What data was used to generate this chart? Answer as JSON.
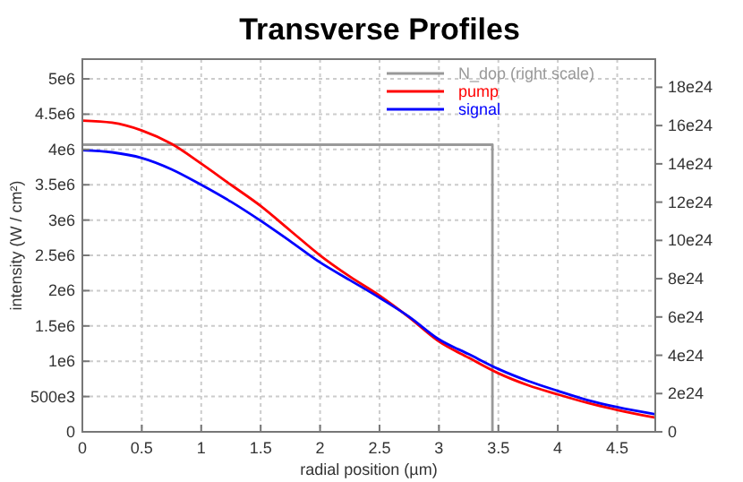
{
  "chart_data": {
    "type": "line",
    "title": "Transverse Profiles",
    "xlabel": "radial position (µm)",
    "ylabel": "intensity (W / cm²)",
    "xlim": [
      0,
      4.82
    ],
    "xticks": [
      0,
      0.5,
      1,
      1.5,
      2,
      2.5,
      3,
      3.5,
      4,
      4.5
    ],
    "ylim": [
      0,
      5280000
    ],
    "yticks": [
      0,
      {
        "value": 500000,
        "label": "500e3"
      },
      {
        "value": 1000000,
        "label": "1e6"
      },
      {
        "value": 1500000,
        "label": "1.5e6"
      },
      {
        "value": 2000000,
        "label": "2e6"
      },
      {
        "value": 2500000,
        "label": "2.5e6"
      },
      {
        "value": 3000000,
        "label": "3e6"
      },
      {
        "value": 3500000,
        "label": "3.5e6"
      },
      {
        "value": 4000000,
        "label": "4e6"
      },
      {
        "value": 4500000,
        "label": "4.5e6"
      },
      {
        "value": 5000000,
        "label": "5e6"
      }
    ],
    "y2lim": [
      0,
      1.947e+25
    ],
    "y2ticks": [
      0,
      {
        "value": 2e+24,
        "label": "2e24"
      },
      {
        "value": 4e+24,
        "label": "4e24"
      },
      {
        "value": 6e+24,
        "label": "6e24"
      },
      {
        "value": 8e+24,
        "label": "8e24"
      },
      {
        "value": 1e+25,
        "label": "10e24"
      },
      {
        "value": 1.2e+25,
        "label": "12e24"
      },
      {
        "value": 1.4e+25,
        "label": "14e24"
      },
      {
        "value": 1.6e+25,
        "label": "16e24"
      },
      {
        "value": 1.8e+25,
        "label": "18e24"
      }
    ],
    "grid": true,
    "legend": "top right",
    "line_style": "solid",
    "marker": "none",
    "series": [
      {
        "name": "N_dop (right scale)",
        "color": "#999999",
        "axis": "y2",
        "x": [
          0,
          3.45,
          3.45
        ],
        "values": [
          1.5e+25,
          1.5e+25,
          0
        ]
      },
      {
        "name": "pump",
        "color": "#ff0000",
        "x": [
          0,
          0.25,
          0.5,
          0.75,
          1,
          1.25,
          1.5,
          1.75,
          2,
          2.25,
          2.5,
          2.75,
          3,
          3.25,
          3.5,
          3.75,
          4,
          4.25,
          4.5,
          4.82
        ],
        "values": [
          4410000,
          4380000,
          4270000,
          4080000,
          3800000,
          3500000,
          3200000,
          2850000,
          2500000,
          2200000,
          1930000,
          1620000,
          1280000,
          1050000,
          830000,
          660000,
          530000,
          410000,
          310000,
          200000
        ]
      },
      {
        "name": "signal",
        "color": "#0000ff",
        "x": [
          0,
          0.25,
          0.5,
          0.75,
          1,
          1.25,
          1.5,
          1.75,
          2,
          2.25,
          2.5,
          2.75,
          3,
          3.25,
          3.5,
          3.75,
          4,
          4.25,
          4.5,
          4.82
        ],
        "values": [
          3990000,
          3960000,
          3880000,
          3720000,
          3500000,
          3260000,
          2990000,
          2700000,
          2400000,
          2150000,
          1900000,
          1630000,
          1310000,
          1100000,
          890000,
          720000,
          580000,
          450000,
          350000,
          250000
        ]
      }
    ]
  }
}
